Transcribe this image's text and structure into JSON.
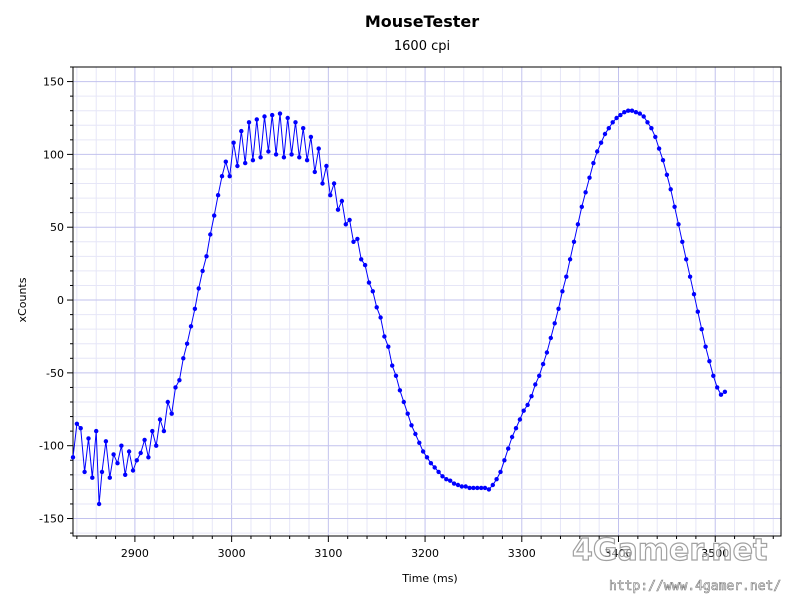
{
  "chart_data": {
    "type": "line",
    "title": "MouseTester",
    "subtitle": "1600 cpi",
    "xlabel": "Time (ms)",
    "ylabel": "xCounts",
    "xlim": [
      2836,
      3568
    ],
    "ylim": [
      -162,
      160
    ],
    "x_ticks": [
      2900,
      3000,
      3100,
      3200,
      3300,
      3400,
      3500
    ],
    "y_ticks": [
      -150,
      -100,
      -50,
      0,
      50,
      100,
      150
    ],
    "grid": true,
    "line_color": "#0000ff",
    "series": [
      {
        "points": [
          [
            2836,
            -108
          ],
          [
            2840,
            -85
          ],
          [
            2844,
            -88
          ],
          [
            2848,
            -118
          ],
          [
            2852,
            -95
          ],
          [
            2856,
            -122
          ],
          [
            2860,
            -90
          ],
          [
            2863,
            -140
          ],
          [
            2866,
            -118
          ],
          [
            2870,
            -97
          ],
          [
            2874,
            -122
          ],
          [
            2878,
            -106
          ],
          [
            2882,
            -112
          ],
          [
            2886,
            -100
          ],
          [
            2890,
            -120
          ],
          [
            2894,
            -104
          ],
          [
            2898,
            -117
          ],
          [
            2902,
            -110
          ],
          [
            2906,
            -105
          ],
          [
            2910,
            -96
          ],
          [
            2914,
            -108
          ],
          [
            2918,
            -90
          ],
          [
            2922,
            -100
          ],
          [
            2926,
            -82
          ],
          [
            2930,
            -90
          ],
          [
            2934,
            -70
          ],
          [
            2938,
            -78
          ],
          [
            2942,
            -60
          ],
          [
            2946,
            -55
          ],
          [
            2950,
            -40
          ],
          [
            2954,
            -30
          ],
          [
            2958,
            -18
          ],
          [
            2962,
            -6
          ],
          [
            2966,
            8
          ],
          [
            2970,
            20
          ],
          [
            2974,
            30
          ],
          [
            2978,
            45
          ],
          [
            2982,
            58
          ],
          [
            2986,
            72
          ],
          [
            2990,
            85
          ],
          [
            2994,
            95
          ],
          [
            2998,
            85
          ],
          [
            3002,
            108
          ],
          [
            3006,
            92
          ],
          [
            3010,
            116
          ],
          [
            3014,
            94
          ],
          [
            3018,
            122
          ],
          [
            3022,
            96
          ],
          [
            3026,
            124
          ],
          [
            3030,
            98
          ],
          [
            3034,
            126
          ],
          [
            3038,
            102
          ],
          [
            3042,
            127
          ],
          [
            3046,
            100
          ],
          [
            3050,
            128
          ],
          [
            3054,
            98
          ],
          [
            3058,
            125
          ],
          [
            3062,
            100
          ],
          [
            3066,
            122
          ],
          [
            3070,
            98
          ],
          [
            3074,
            118
          ],
          [
            3078,
            96
          ],
          [
            3082,
            112
          ],
          [
            3086,
            88
          ],
          [
            3090,
            104
          ],
          [
            3094,
            80
          ],
          [
            3098,
            92
          ],
          [
            3102,
            72
          ],
          [
            3106,
            80
          ],
          [
            3110,
            62
          ],
          [
            3114,
            68
          ],
          [
            3118,
            52
          ],
          [
            3122,
            55
          ],
          [
            3126,
            40
          ],
          [
            3130,
            42
          ],
          [
            3134,
            28
          ],
          [
            3138,
            24
          ],
          [
            3142,
            12
          ],
          [
            3146,
            6
          ],
          [
            3150,
            -5
          ],
          [
            3154,
            -12
          ],
          [
            3158,
            -25
          ],
          [
            3162,
            -32
          ],
          [
            3166,
            -45
          ],
          [
            3170,
            -52
          ],
          [
            3174,
            -62
          ],
          [
            3178,
            -70
          ],
          [
            3182,
            -78
          ],
          [
            3186,
            -86
          ],
          [
            3190,
            -92
          ],
          [
            3194,
            -98
          ],
          [
            3198,
            -104
          ],
          [
            3202,
            -108
          ],
          [
            3206,
            -112
          ],
          [
            3210,
            -115
          ],
          [
            3214,
            -118
          ],
          [
            3218,
            -121
          ],
          [
            3222,
            -123
          ],
          [
            3226,
            -124
          ],
          [
            3230,
            -126
          ],
          [
            3234,
            -127
          ],
          [
            3238,
            -128
          ],
          [
            3242,
            -128
          ],
          [
            3246,
            -129
          ],
          [
            3250,
            -129
          ],
          [
            3254,
            -129
          ],
          [
            3258,
            -129
          ],
          [
            3262,
            -129
          ],
          [
            3266,
            -130
          ],
          [
            3270,
            -127
          ],
          [
            3274,
            -123
          ],
          [
            3278,
            -118
          ],
          [
            3282,
            -110
          ],
          [
            3286,
            -102
          ],
          [
            3290,
            -94
          ],
          [
            3294,
            -88
          ],
          [
            3298,
            -82
          ],
          [
            3302,
            -76
          ],
          [
            3306,
            -72
          ],
          [
            3310,
            -66
          ],
          [
            3314,
            -58
          ],
          [
            3318,
            -52
          ],
          [
            3322,
            -44
          ],
          [
            3326,
            -36
          ],
          [
            3330,
            -26
          ],
          [
            3334,
            -16
          ],
          [
            3338,
            -6
          ],
          [
            3342,
            6
          ],
          [
            3346,
            16
          ],
          [
            3350,
            28
          ],
          [
            3354,
            40
          ],
          [
            3358,
            52
          ],
          [
            3362,
            64
          ],
          [
            3366,
            74
          ],
          [
            3370,
            84
          ],
          [
            3374,
            94
          ],
          [
            3378,
            102
          ],
          [
            3382,
            108
          ],
          [
            3386,
            114
          ],
          [
            3390,
            118
          ],
          [
            3394,
            122
          ],
          [
            3398,
            125
          ],
          [
            3402,
            127
          ],
          [
            3406,
            129
          ],
          [
            3410,
            130
          ],
          [
            3414,
            130
          ],
          [
            3418,
            129
          ],
          [
            3422,
            128
          ],
          [
            3426,
            126
          ],
          [
            3430,
            122
          ],
          [
            3434,
            118
          ],
          [
            3438,
            112
          ],
          [
            3442,
            104
          ],
          [
            3446,
            96
          ],
          [
            3450,
            86
          ],
          [
            3454,
            76
          ],
          [
            3458,
            64
          ],
          [
            3462,
            52
          ],
          [
            3466,
            40
          ],
          [
            3470,
            28
          ],
          [
            3474,
            16
          ],
          [
            3478,
            4
          ],
          [
            3482,
            -8
          ],
          [
            3486,
            -20
          ],
          [
            3490,
            -32
          ],
          [
            3494,
            -42
          ],
          [
            3498,
            -52
          ],
          [
            3502,
            -60
          ],
          [
            3506,
            -65
          ],
          [
            3510,
            -63
          ]
        ]
      }
    ]
  },
  "watermark": {
    "brand": "4Gamer.net",
    "url": "http://www.4gamer.net/"
  }
}
